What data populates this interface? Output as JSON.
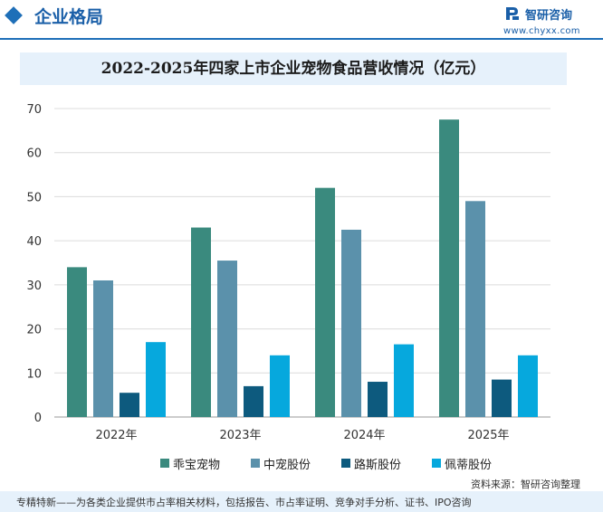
{
  "header": {
    "title": "企业格局",
    "logo_name": "智研咨询",
    "logo_url": "www.chyxx.com"
  },
  "chart_data": {
    "type": "bar",
    "title": "2022-2025年四家上市企业宠物食品营收情况（亿元）",
    "categories": [
      "2022年",
      "2023年",
      "2024年",
      "2025年"
    ],
    "series": [
      {
        "name": "乖宝宠物",
        "values": [
          34,
          43,
          52,
          67.5
        ],
        "color": "#3a8a7e"
      },
      {
        "name": "中宠股份",
        "values": [
          31,
          35.5,
          42.5,
          49
        ],
        "color": "#5b91ab"
      },
      {
        "name": "路斯股份",
        "values": [
          5.5,
          7,
          8,
          8.5
        ],
        "color": "#0d5a7e"
      },
      {
        "name": "佩蒂股份",
        "values": [
          17,
          14,
          16.5,
          14
        ],
        "color": "#06a8dd"
      }
    ],
    "ylim": [
      0,
      70
    ],
    "yticks": [
      0,
      10,
      20,
      30,
      40,
      50,
      60,
      70
    ],
    "grid": true,
    "legend_position": "bottom"
  },
  "source": "资料来源：智研咨询整理",
  "footer": "专精特新——为各类企业提供市占率相关材料，包括报告、市占率证明、竞争对手分析、证书、IPO咨询"
}
